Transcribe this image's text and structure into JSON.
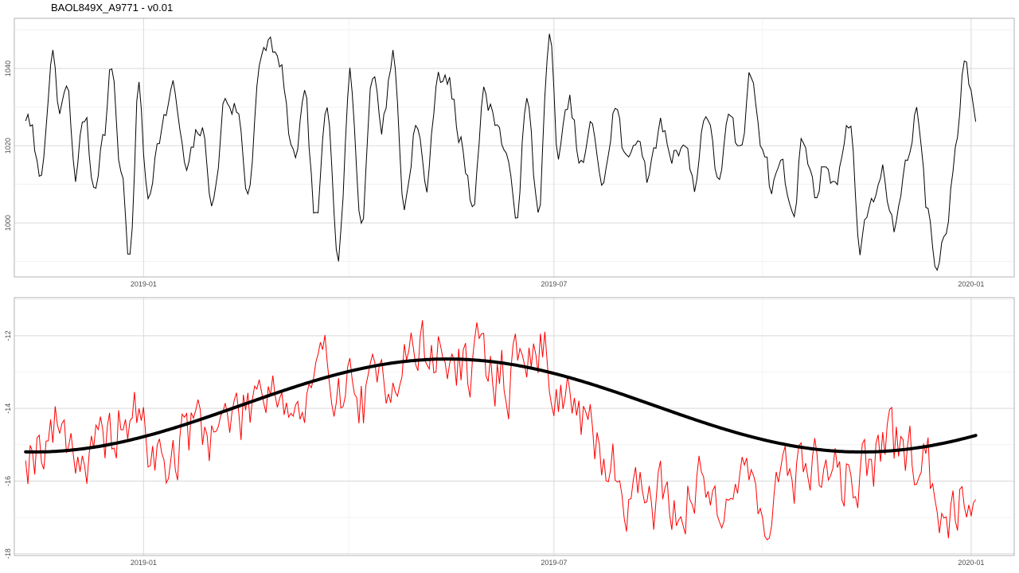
{
  "title": "BAOL849X_A9771 - v0.01",
  "chart_data": [
    {
      "type": "line",
      "title": "",
      "xlabel": "",
      "ylabel": "",
      "xlim": [
        "2018-11-05",
        "2020-01-20"
      ],
      "ylim": [
        986,
        1053
      ],
      "x_ticks": [
        "2019-01",
        "2019-07",
        "2020-01"
      ],
      "y_ticks": [
        1000,
        1020,
        1040
      ],
      "grid": true,
      "series": [
        {
          "color": "#000000",
          "start_date": "2018-11-10",
          "end_date": "2020-01-03",
          "keypoints": [
            [
              "2018-11-10",
              1028
            ],
            [
              "2018-11-13",
              1022
            ],
            [
              "2018-11-16",
              1012
            ],
            [
              "2018-11-19",
              1024
            ],
            [
              "2018-11-22",
              1044
            ],
            [
              "2018-11-25",
              1026
            ],
            [
              "2018-11-28",
              1035
            ],
            [
              "2018-12-02",
              1013
            ],
            [
              "2018-12-06",
              1028
            ],
            [
              "2018-12-10",
              1010
            ],
            [
              "2018-12-14",
              1022
            ],
            [
              "2018-12-18",
              1040
            ],
            [
              "2018-12-22",
              1014
            ],
            [
              "2018-12-26",
              991
            ],
            [
              "2018-12-30",
              1035
            ],
            [
              "2019-01-03",
              1005
            ],
            [
              "2019-01-08",
              1025
            ],
            [
              "2019-01-14",
              1034
            ],
            [
              "2019-01-20",
              1013
            ],
            [
              "2019-01-26",
              1024
            ],
            [
              "2019-02-01",
              1006
            ],
            [
              "2019-02-06",
              1032
            ],
            [
              "2019-02-11",
              1030
            ],
            [
              "2019-02-16",
              1008
            ],
            [
              "2019-02-21",
              1040
            ],
            [
              "2019-02-26",
              1047
            ],
            [
              "2019-03-03",
              1038
            ],
            [
              "2019-03-08",
              1015
            ],
            [
              "2019-03-13",
              1030
            ],
            [
              "2019-03-18",
              1000
            ],
            [
              "2019-03-23",
              1028
            ],
            [
              "2019-03-28",
              995
            ],
            [
              "2019-04-02",
              1038
            ],
            [
              "2019-04-07",
              1000
            ],
            [
              "2019-04-12",
              1040
            ],
            [
              "2019-04-16",
              1025
            ],
            [
              "2019-04-21",
              1044
            ],
            [
              "2019-04-26",
              1005
            ],
            [
              "2019-05-01",
              1025
            ],
            [
              "2019-05-06",
              1010
            ],
            [
              "2019-05-11",
              1040
            ],
            [
              "2019-05-16",
              1035
            ],
            [
              "2019-05-21",
              1020
            ],
            [
              "2019-05-26",
              1006
            ],
            [
              "2019-05-31",
              1033
            ],
            [
              "2019-06-05",
              1028
            ],
            [
              "2019-06-09",
              1020
            ],
            [
              "2019-06-14",
              1002
            ],
            [
              "2019-06-19",
              1030
            ],
            [
              "2019-06-24",
              1004
            ],
            [
              "2019-06-29",
              1047
            ],
            [
              "2019-07-03",
              1018
            ],
            [
              "2019-07-08",
              1030
            ],
            [
              "2019-07-13",
              1014
            ],
            [
              "2019-07-18",
              1024
            ],
            [
              "2019-07-23",
              1010
            ],
            [
              "2019-07-28",
              1030
            ],
            [
              "2019-08-02",
              1015
            ],
            [
              "2019-08-07",
              1024
            ],
            [
              "2019-08-12",
              1012
            ],
            [
              "2019-08-17",
              1025
            ],
            [
              "2019-08-22",
              1018
            ],
            [
              "2019-08-27",
              1022
            ],
            [
              "2019-09-01",
              1010
            ],
            [
              "2019-09-06",
              1030
            ],
            [
              "2019-09-11",
              1012
            ],
            [
              "2019-09-16",
              1025
            ],
            [
              "2019-09-21",
              1018
            ],
            [
              "2019-09-26",
              1038
            ],
            [
              "2019-10-01",
              1022
            ],
            [
              "2019-10-05",
              1010
            ],
            [
              "2019-10-09",
              1016
            ],
            [
              "2019-10-14",
              1002
            ],
            [
              "2019-10-19",
              1022
            ],
            [
              "2019-10-24",
              1008
            ],
            [
              "2019-10-29",
              1016
            ],
            [
              "2019-11-03",
              1010
            ],
            [
              "2019-11-08",
              1028
            ],
            [
              "2019-11-13",
              994
            ],
            [
              "2019-11-18",
              1005
            ],
            [
              "2019-11-23",
              1012
            ],
            [
              "2019-11-28",
              998
            ],
            [
              "2019-12-03",
              1015
            ],
            [
              "2019-12-08",
              1030
            ],
            [
              "2019-12-13",
              1002
            ],
            [
              "2019-12-17",
              988
            ],
            [
              "2019-12-21",
              1000
            ],
            [
              "2019-12-25",
              1018
            ],
            [
              "2019-12-29",
              1043
            ],
            [
              "2020-01-01",
              1035
            ],
            [
              "2020-01-03",
              1028
            ]
          ]
        }
      ]
    },
    {
      "type": "line",
      "title": "",
      "xlabel": "",
      "ylabel": "",
      "xlim": [
        "2018-11-05",
        "2020-01-20"
      ],
      "ylim": [
        -18.05,
        -10.95
      ],
      "x_ticks": [
        "2019-01",
        "2019-07",
        "2020-01"
      ],
      "y_ticks": [
        -18,
        -16,
        -14,
        -12
      ],
      "grid": true,
      "series": [
        {
          "color": "#ff0000",
          "start_date": "2018-11-10",
          "end_date": "2020-01-03",
          "keypoints": [
            [
              "2018-11-10",
              -15.0
            ],
            [
              "2018-11-25",
              -14.5
            ],
            [
              "2018-12-10",
              -15.5
            ],
            [
              "2018-12-25",
              -14.2
            ],
            [
              "2019-01-10",
              -15.5
            ],
            [
              "2019-01-25",
              -14.5
            ],
            [
              "2019-02-10",
              -14.3
            ],
            [
              "2019-02-25",
              -13.0
            ],
            [
              "2019-03-10",
              -14.2
            ],
            [
              "2019-03-25",
              -13.0
            ],
            [
              "2019-04-10",
              -13.8
            ],
            [
              "2019-04-25",
              -12.5
            ],
            [
              "2019-05-10",
              -12.5
            ],
            [
              "2019-05-25",
              -12.9
            ],
            [
              "2019-06-10",
              -13.0
            ],
            [
              "2019-06-25",
              -12.4
            ],
            [
              "2019-07-05",
              -13.5
            ],
            [
              "2019-07-20",
              -15.2
            ],
            [
              "2019-08-05",
              -16.2
            ],
            [
              "2019-08-20",
              -16.5
            ],
            [
              "2019-09-05",
              -16.3
            ],
            [
              "2019-09-20",
              -16.0
            ],
            [
              "2019-10-05",
              -16.5
            ],
            [
              "2019-10-20",
              -15.5
            ],
            [
              "2019-11-05",
              -16.0
            ],
            [
              "2019-11-20",
              -15.3
            ],
            [
              "2019-12-05",
              -15.2
            ],
            [
              "2019-12-20",
              -16.5
            ],
            [
              "2020-01-03",
              -16.0
            ]
          ]
        },
        {
          "color": "#000000",
          "description": "smoothed trend",
          "amplitude": 1.28,
          "mean": -13.92,
          "period_days": 365,
          "peak_date": "2019-05-15",
          "start_date": "2018-11-10",
          "end_date": "2020-01-03"
        }
      ]
    }
  ]
}
